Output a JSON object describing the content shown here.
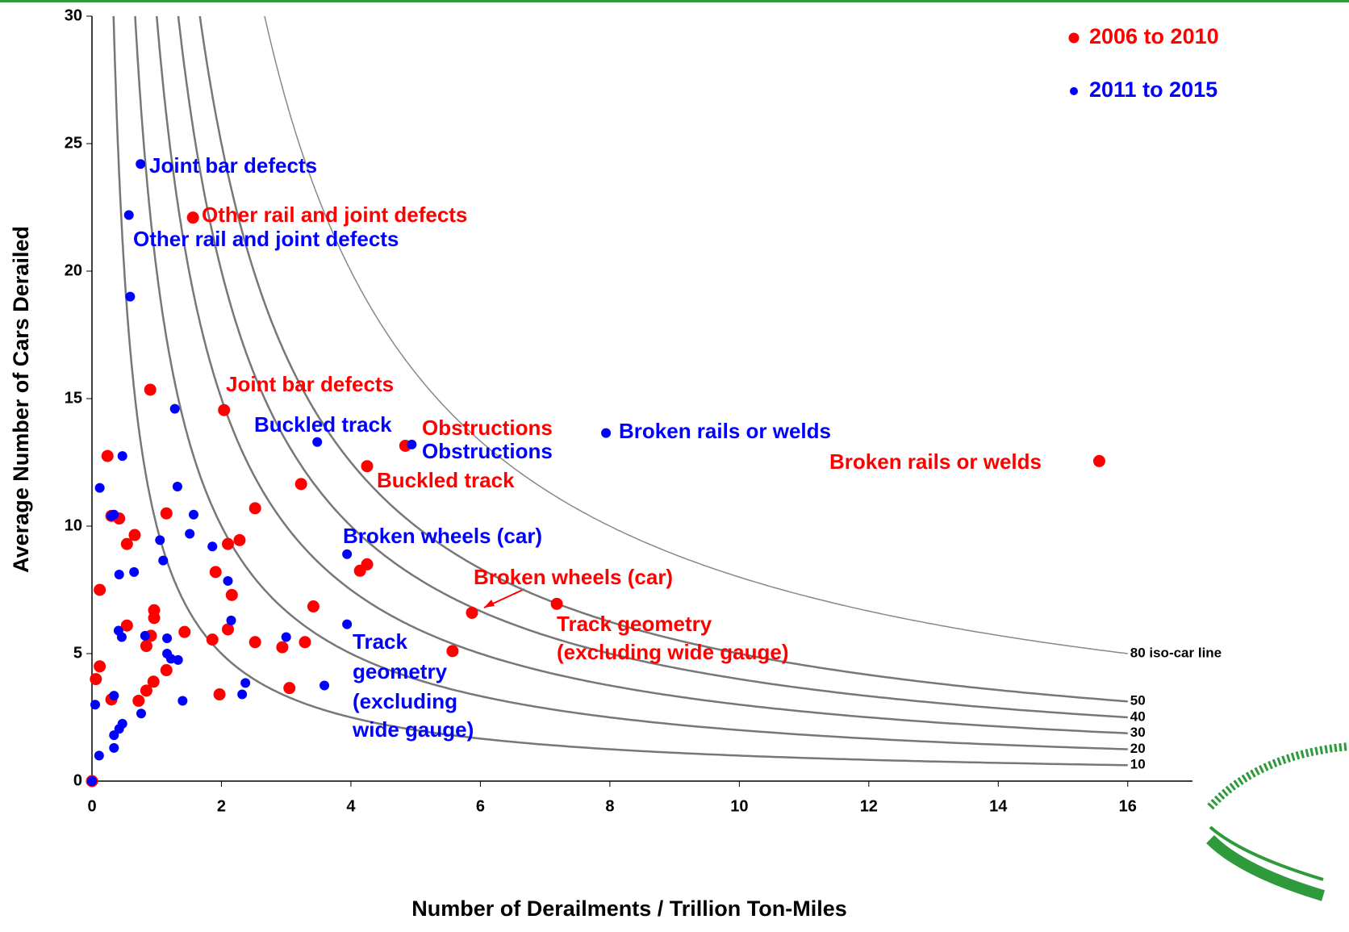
{
  "chart_data": {
    "type": "scatter",
    "xlabel": "Number of Derailments / Trillion Ton-Miles",
    "ylabel": "Average Number of Cars Derailed",
    "xlim": [
      0,
      17
    ],
    "ylim": [
      0,
      30
    ],
    "xticks": [
      0,
      2,
      4,
      6,
      8,
      10,
      12,
      14,
      16
    ],
    "yticks": [
      0,
      5,
      10,
      15,
      20,
      25,
      30
    ],
    "legend": "upper right",
    "iso_lines": [
      {
        "value": 80,
        "label": "80 iso-car line"
      },
      50,
      40,
      30,
      20,
      10
    ],
    "series": [
      {
        "name": "2006 to 2010",
        "color": "#ff0000",
        "x": [
          0,
          0.06,
          0.12,
          0.12,
          0.24,
          0.3,
          0.3,
          0.42,
          0.54,
          0.54,
          0.66,
          0.72,
          0.84,
          0.84,
          0.91,
          0.9,
          0.95,
          0.96,
          0.96,
          1.15,
          1.15,
          1.43,
          1.56,
          1.86,
          1.91,
          1.97,
          2.04,
          2.1,
          2.1,
          2.16,
          2.28,
          2.52,
          2.52,
          2.94,
          3.05,
          3.23,
          3.29,
          3.42,
          4.14,
          4.25,
          4.25,
          4.84,
          5.57,
          5.87,
          7.18,
          15.56
        ],
        "values": [
          0,
          4.0,
          4.5,
          7.5,
          12.75,
          3.2,
          10.4,
          10.3,
          9.3,
          6.1,
          9.65,
          3.15,
          3.55,
          5.3,
          5.7,
          15.35,
          3.9,
          6.7,
          6.4,
          4.35,
          10.5,
          5.85,
          22.1,
          5.55,
          8.2,
          3.4,
          14.55,
          9.3,
          5.95,
          7.3,
          9.45,
          5.45,
          10.7,
          5.25,
          3.65,
          11.65,
          5.45,
          6.85,
          8.25,
          8.5,
          12.35,
          13.15,
          5.1,
          6.6,
          6.95,
          12.55
        ]
      },
      {
        "name": "2011 to 2015",
        "color": "#0000ff",
        "x": [
          0,
          0.05,
          0.11,
          0.12,
          0.3,
          0.34,
          0.34,
          0.34,
          0.34,
          0.41,
          0.42,
          0.42,
          0.46,
          0.47,
          0.47,
          0.57,
          0.59,
          0.65,
          0.75,
          0.76,
          0.82,
          1.05,
          1.1,
          1.16,
          1.16,
          1.22,
          1.28,
          1.32,
          1.33,
          1.4,
          1.51,
          1.57,
          1.86,
          2.1,
          2.15,
          2.32,
          2.37,
          3.0,
          3.48,
          3.59,
          3.94,
          3.94,
          4.94,
          7.94
        ],
        "values": [
          0,
          3.0,
          1.0,
          11.5,
          10.4,
          10.45,
          1.8,
          1.3,
          3.35,
          5.9,
          8.1,
          2.05,
          5.65,
          12.75,
          2.25,
          22.2,
          19.0,
          8.2,
          24.2,
          2.65,
          5.7,
          9.45,
          8.65,
          5.6,
          5.0,
          4.8,
          14.6,
          11.55,
          4.75,
          3.15,
          9.7,
          10.45,
          9.2,
          7.85,
          6.3,
          3.4,
          3.85,
          5.65,
          13.3,
          3.75,
          8.9,
          6.15,
          13.2,
          13.65
        ]
      }
    ],
    "annotations": [
      {
        "lines": [
          "Joint bar defects"
        ],
        "color": "#0000ff"
      },
      {
        "lines": [
          "Other rail and joint defects"
        ],
        "color": "#ff0000"
      },
      {
        "lines": [
          "Other rail and joint defects"
        ],
        "color": "#0000ff"
      },
      {
        "lines": [
          "Joint bar defects"
        ],
        "color": "#ff0000"
      },
      {
        "lines": [
          "Buckled track"
        ],
        "color": "#0000ff"
      },
      {
        "lines": [
          "Obstructions"
        ],
        "color": "#ff0000"
      },
      {
        "lines": [
          "Obstructions"
        ],
        "color": "#0000ff"
      },
      {
        "lines": [
          "Broken rails or welds"
        ],
        "color": "#0000ff"
      },
      {
        "lines": [
          "Broken rails or welds"
        ],
        "color": "#ff0000"
      },
      {
        "lines": [
          "Buckled track"
        ],
        "color": "#ff0000"
      },
      {
        "lines": [
          "Broken wheels (car)"
        ],
        "color": "#0000ff"
      },
      {
        "lines": [
          "Broken wheels (car)"
        ],
        "color": "#ff0000"
      },
      {
        "lines": [
          "Track geometry",
          "(excluding wide gauge)"
        ],
        "color": "#ff0000"
      },
      {
        "lines": [
          "Track",
          "geometry",
          "(excluding",
          "wide gauge)"
        ],
        "color": "#0000ff"
      }
    ]
  }
}
